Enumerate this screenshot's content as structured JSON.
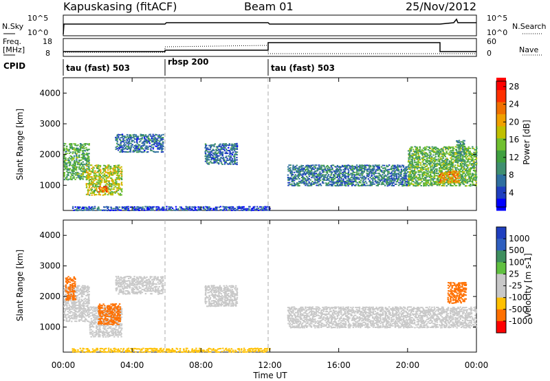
{
  "header": {
    "station": "Kapuskasing (fitACF)",
    "beam": "Beam 01",
    "date": "25/Nov/2012"
  },
  "sky_panel": {
    "left_label": "N.Sky",
    "right_label": "N.Search",
    "left_ticks": [
      "10^5",
      "10^0"
    ],
    "right_ticks": [
      "10^5",
      "10^0"
    ]
  },
  "freq_panel": {
    "left_label_1": "Freq.",
    "left_label_2": "[MHz]",
    "right_label": "Nave",
    "left_ticks": [
      "18",
      "8"
    ],
    "right_ticks": [
      "60",
      "0"
    ]
  },
  "cpid": {
    "label": "CPID",
    "segments": [
      {
        "name": "tau (fast) 503",
        "start_hour": 0
      },
      {
        "name": "rbsp 200",
        "start_hour": 6
      },
      {
        "name": "tau (fast) 503",
        "start_hour": 12
      }
    ]
  },
  "colors": {
    "power": [
      "#0000ff",
      "#1f3fbf",
      "#2f6fa0",
      "#3f8f70",
      "#40a040",
      "#70c030",
      "#c0c000",
      "#f0a000",
      "#f07000",
      "#ff3000",
      "#ff0000"
    ],
    "velocity": [
      "#ff0000",
      "#ff7000",
      "#ffc000",
      "#c8c8c8",
      "#c8c8c8",
      "#60c040",
      "#3f8f5f",
      "#2f5fbf",
      "#1f3fbf"
    ],
    "ground_scatter": "#c8c8c8"
  },
  "chart_data": [
    {
      "type": "heatmap",
      "name": "power",
      "ylabel": "Slant Range [km]",
      "yticks": [
        "1000",
        "2000",
        "3000",
        "4000"
      ],
      "ylim": [
        180,
        4500
      ],
      "xlim": [
        0,
        24
      ],
      "colorbar": {
        "label": "Power [dB]",
        "ticks": [
          "28",
          "24",
          "20",
          "16",
          "12",
          "8",
          "4"
        ],
        "range": [
          0,
          30
        ]
      },
      "scatter_regions": [
        {
          "t0": 0.0,
          "t1": 1.5,
          "r0": 1200,
          "r1": 2400,
          "value": 12
        },
        {
          "t0": 1.3,
          "t1": 3.4,
          "r0": 700,
          "r1": 1700,
          "value": 17
        },
        {
          "t0": 2.0,
          "t1": 2.6,
          "r0": 800,
          "r1": 1000,
          "value": 25
        },
        {
          "t0": 3.0,
          "t1": 5.8,
          "r0": 2100,
          "r1": 2700,
          "value": 6
        },
        {
          "t0": 8.2,
          "t1": 10.1,
          "r0": 1700,
          "r1": 2400,
          "value": 6
        },
        {
          "t0": 13.0,
          "t1": 20.0,
          "r0": 1000,
          "r1": 1700,
          "value": 7
        },
        {
          "t0": 20.0,
          "t1": 24.0,
          "r0": 1000,
          "r1": 2300,
          "value": 13
        },
        {
          "t0": 21.8,
          "t1": 23.0,
          "r0": 1100,
          "r1": 1500,
          "value": 22
        },
        {
          "t0": 22.8,
          "t1": 23.3,
          "r0": 1800,
          "r1": 2500,
          "value": 10
        },
        {
          "t0": 0.5,
          "t1": 12.0,
          "r0": 200,
          "r1": 350,
          "value": 4
        }
      ]
    },
    {
      "type": "heatmap",
      "name": "velocity",
      "xlabel": "Time UT",
      "ylabel": "Slant Range [km]",
      "yticks": [
        "1000",
        "2000",
        "3000",
        "4000"
      ],
      "ylim": [
        180,
        4500
      ],
      "xlim": [
        0,
        24
      ],
      "xticks": [
        "00:00",
        "04:00",
        "08:00",
        "12:00",
        "16:00",
        "20:00",
        "00:00"
      ],
      "xtick_hours": [
        0,
        4,
        8,
        12,
        16,
        20,
        24
      ],
      "colorbar": {
        "label": "Velocity [m s-1]",
        "ticks": [
          "1000",
          "500",
          "100",
          "25",
          "-25",
          "-100",
          "-500",
          "-1000"
        ]
      },
      "scatter_regions": [
        {
          "t0": 0.0,
          "t1": 1.5,
          "r0": 1200,
          "r1": 2400,
          "value": "gs"
        },
        {
          "t0": 0.1,
          "t1": 0.7,
          "r0": 1900,
          "r1": 2700,
          "value": -200
        },
        {
          "t0": 1.5,
          "t1": 3.4,
          "r0": 700,
          "r1": 1700,
          "value": "gs"
        },
        {
          "t0": 2.0,
          "t1": 3.3,
          "r0": 1100,
          "r1": 1800,
          "value": -300
        },
        {
          "t0": 3.0,
          "t1": 5.8,
          "r0": 2100,
          "r1": 2700,
          "value": "gs"
        },
        {
          "t0": 8.2,
          "t1": 10.1,
          "r0": 1700,
          "r1": 2400,
          "value": "gs"
        },
        {
          "t0": 13.0,
          "t1": 24.0,
          "r0": 1000,
          "r1": 1700,
          "value": "gs"
        },
        {
          "t0": 22.3,
          "t1": 23.4,
          "r0": 1800,
          "r1": 2500,
          "value": -250
        },
        {
          "t0": 0.5,
          "t1": 12.0,
          "r0": 200,
          "r1": 350,
          "value": -60
        }
      ]
    }
  ]
}
